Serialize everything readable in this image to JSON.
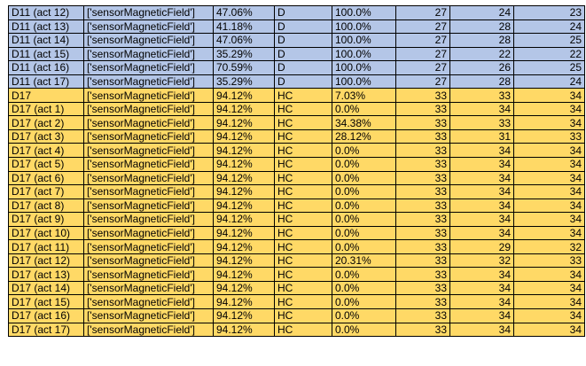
{
  "colors": {
    "blue_row": "#b4c6e7",
    "yellow_row": "#ffd966",
    "border": "#000000"
  },
  "rows": [
    {
      "group": "blue",
      "cells": [
        "D11 (act 12)",
        "['sensorMagneticField']",
        "47.06%",
        "D",
        "100.0%",
        "27",
        "24",
        "23"
      ]
    },
    {
      "group": "blue",
      "cells": [
        "D11 (act 13)",
        "['sensorMagneticField']",
        "41.18%",
        "D",
        "100.0%",
        "27",
        "28",
        "24"
      ]
    },
    {
      "group": "blue",
      "cells": [
        "D11 (act 14)",
        "['sensorMagneticField']",
        "47.06%",
        "D",
        "100.0%",
        "27",
        "28",
        "25"
      ]
    },
    {
      "group": "blue",
      "cells": [
        "D11 (act 15)",
        "['sensorMagneticField']",
        "35.29%",
        "D",
        "100.0%",
        "27",
        "22",
        "22"
      ]
    },
    {
      "group": "blue",
      "cells": [
        "D11 (act 16)",
        "['sensorMagneticField']",
        "70.59%",
        "D",
        "100.0%",
        "27",
        "26",
        "25"
      ]
    },
    {
      "group": "blue",
      "cells": [
        "D11 (act 17)",
        "['sensorMagneticField']",
        "35.29%",
        "D",
        "100.0%",
        "27",
        "28",
        "24"
      ]
    },
    {
      "group": "yellow",
      "cells": [
        "D17",
        "['sensorMagneticField']",
        "94.12%",
        "HC",
        "7.03%",
        "33",
        "33",
        "34"
      ]
    },
    {
      "group": "yellow",
      "cells": [
        "D17 (act 1)",
        "['sensorMagneticField']",
        "94.12%",
        "HC",
        "0.0%",
        "33",
        "34",
        "34"
      ]
    },
    {
      "group": "yellow",
      "cells": [
        "D17 (act 2)",
        "['sensorMagneticField']",
        "94.12%",
        "HC",
        "34.38%",
        "33",
        "33",
        "34"
      ]
    },
    {
      "group": "yellow",
      "cells": [
        "D17 (act 3)",
        "['sensorMagneticField']",
        "94.12%",
        "HC",
        "28.12%",
        "33",
        "31",
        "33"
      ]
    },
    {
      "group": "yellow",
      "cells": [
        "D17 (act 4)",
        "['sensorMagneticField']",
        "94.12%",
        "HC",
        "0.0%",
        "33",
        "34",
        "34"
      ]
    },
    {
      "group": "yellow",
      "cells": [
        "D17 (act 5)",
        "['sensorMagneticField']",
        "94.12%",
        "HC",
        "0.0%",
        "33",
        "34",
        "34"
      ]
    },
    {
      "group": "yellow",
      "cells": [
        "D17 (act 6)",
        "['sensorMagneticField']",
        "94.12%",
        "HC",
        "0.0%",
        "33",
        "34",
        "34"
      ]
    },
    {
      "group": "yellow",
      "cells": [
        "D17 (act 7)",
        "['sensorMagneticField']",
        "94.12%",
        "HC",
        "0.0%",
        "33",
        "34",
        "34"
      ]
    },
    {
      "group": "yellow",
      "cells": [
        "D17 (act 8)",
        "['sensorMagneticField']",
        "94.12%",
        "HC",
        "0.0%",
        "33",
        "34",
        "34"
      ]
    },
    {
      "group": "yellow",
      "cells": [
        "D17 (act 9)",
        "['sensorMagneticField']",
        "94.12%",
        "HC",
        "0.0%",
        "33",
        "34",
        "34"
      ]
    },
    {
      "group": "yellow",
      "cells": [
        "D17 (act 10)",
        "['sensorMagneticField']",
        "94.12%",
        "HC",
        "0.0%",
        "33",
        "34",
        "34"
      ]
    },
    {
      "group": "yellow",
      "cells": [
        "D17 (act 11)",
        "['sensorMagneticField']",
        "94.12%",
        "HC",
        "0.0%",
        "33",
        "29",
        "32"
      ]
    },
    {
      "group": "yellow",
      "cells": [
        "D17 (act 12)",
        "['sensorMagneticField']",
        "94.12%",
        "HC",
        "20.31%",
        "33",
        "32",
        "33"
      ]
    },
    {
      "group": "yellow",
      "cells": [
        "D17 (act 13)",
        "['sensorMagneticField']",
        "94.12%",
        "HC",
        "0.0%",
        "33",
        "34",
        "34"
      ]
    },
    {
      "group": "yellow",
      "cells": [
        "D17 (act 14)",
        "['sensorMagneticField']",
        "94.12%",
        "HC",
        "0.0%",
        "33",
        "34",
        "34"
      ]
    },
    {
      "group": "yellow",
      "cells": [
        "D17 (act 15)",
        "['sensorMagneticField']",
        "94.12%",
        "HC",
        "0.0%",
        "33",
        "34",
        "34"
      ]
    },
    {
      "group": "yellow",
      "cells": [
        "D17 (act 16)",
        "['sensorMagneticField']",
        "94.12%",
        "HC",
        "0.0%",
        "33",
        "34",
        "34"
      ]
    },
    {
      "group": "yellow",
      "cells": [
        "D17 (act 17)",
        "['sensorMagneticField']",
        "94.12%",
        "HC",
        "0.0%",
        "33",
        "34",
        "34"
      ]
    }
  ]
}
